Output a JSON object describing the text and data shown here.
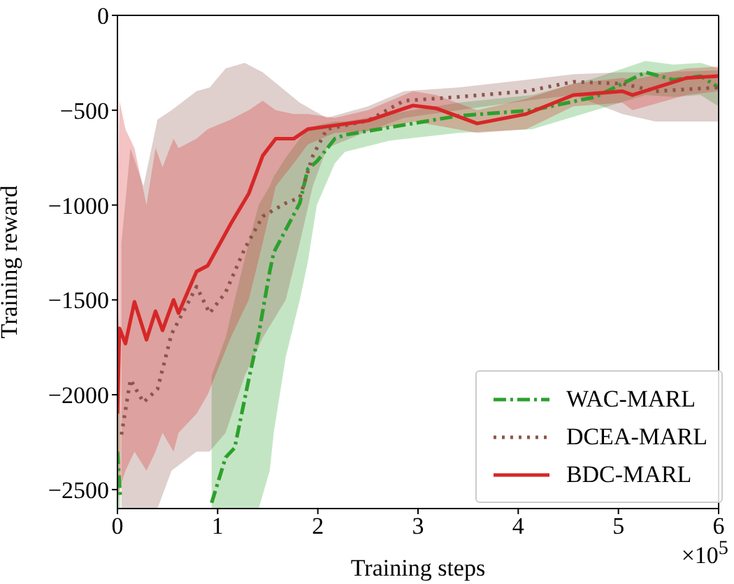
{
  "chart_data": {
    "type": "line",
    "xlabel": "Training steps",
    "ylabel": "Training reward",
    "annotations": [
      "×10$^{5}$"
    ],
    "xlim": [
      0,
      6
    ],
    "xticks": [
      0,
      1,
      2,
      3,
      4,
      5,
      6
    ],
    "ylim": [
      -2600,
      0
    ],
    "yticks": [
      0,
      -500,
      -1000,
      -1500,
      -2000,
      -2500
    ],
    "legend": "bottom right",
    "marker": "none",
    "series": [
      {
        "name": "WAC-MARL",
        "color": "#2ca02c",
        "line_style": "dashed",
        "x": [
          0,
          0.03,
          0.5,
          0.94,
          1.08,
          1.17,
          1.31,
          1.41,
          1.52,
          1.56,
          1.68,
          1.82,
          1.9,
          1.99,
          2.17,
          2.27,
          2.72,
          3.4,
          4.14,
          4.77,
          5.27,
          5.55,
          5.82,
          6.0
        ],
        "values": [
          -2300,
          -2550,
          null,
          -2570,
          -2330,
          -2280,
          -1920,
          -1680,
          -1350,
          -1250,
          -1130,
          -990,
          -810,
          -770,
          -650,
          -630,
          -590,
          -530,
          -500,
          -430,
          -300,
          -340,
          -320,
          -380
        ],
        "lower": [
          -2600,
          -2600,
          null,
          -2600,
          -2600,
          -2600,
          -2600,
          -2600,
          -2400,
          -2200,
          -1800,
          -1500,
          -1300,
          -1000,
          -780,
          -720,
          -660,
          -620,
          -600,
          -500,
          -420,
          -430,
          -420,
          -480
        ],
        "upper": [
          -1500,
          -1800,
          null,
          -1900,
          -1700,
          -1500,
          -1200,
          -1000,
          -900,
          -850,
          -750,
          -650,
          -600,
          -580,
          -560,
          -560,
          -520,
          -460,
          -420,
          -330,
          -240,
          -260,
          -250,
          -280
        ]
      },
      {
        "name": "DCEA-MARL",
        "color": "#8c564b",
        "line_style": "dotted",
        "x": [
          0.04,
          0.13,
          0.26,
          0.4,
          0.54,
          0.79,
          0.92,
          1.08,
          1.27,
          1.45,
          1.68,
          1.82,
          1.95,
          2.09,
          2.5,
          2.86,
          3.4,
          4.08,
          4.55,
          5.04,
          5.37,
          6.0
        ],
        "values": [
          -2210,
          -1920,
          -2040,
          -1970,
          -1680,
          -1430,
          -1570,
          -1460,
          -1230,
          -1060,
          -990,
          -960,
          -740,
          -600,
          -555,
          -450,
          -430,
          -400,
          -350,
          -360,
          -400,
          -380
        ],
        "lower": [
          -2600,
          -2600,
          -2600,
          -2600,
          -2400,
          -2300,
          -2300,
          -2200,
          -1900,
          -1700,
          -1500,
          -1200,
          -900,
          -700,
          -610,
          -540,
          -500,
          -450,
          -420,
          -520,
          -560,
          -560
        ],
        "upper": [
          -1200,
          -700,
          -900,
          -550,
          -500,
          -400,
          -380,
          -280,
          -250,
          -300,
          -400,
          -460,
          -500,
          -540,
          -480,
          -400,
          -380,
          -340,
          -310,
          -300,
          -300,
          -290
        ]
      },
      {
        "name": "BDC-MARL",
        "color": "#d62728",
        "line_style": "solid",
        "x": [
          0,
          0.02,
          0.08,
          0.17,
          0.29,
          0.38,
          0.45,
          0.56,
          0.61,
          0.79,
          0.9,
          1.13,
          1.31,
          1.45,
          1.58,
          1.76,
          1.9,
          2.17,
          2.5,
          2.95,
          3.18,
          3.59,
          4.08,
          4.55,
          5.04,
          5.14,
          5.68,
          6.0
        ],
        "values": [
          -2100,
          -1650,
          -1730,
          -1510,
          -1710,
          -1560,
          -1660,
          -1500,
          -1570,
          -1350,
          -1320,
          -1100,
          -940,
          -740,
          -650,
          -650,
          -600,
          -580,
          -555,
          -475,
          -490,
          -570,
          -520,
          -420,
          -400,
          -420,
          -330,
          -320
        ],
        "lower": [
          -2600,
          -2500,
          -2400,
          -2300,
          -2400,
          -2300,
          -2200,
          -2300,
          -2200,
          -2100,
          -2000,
          -1700,
          -1500,
          -1200,
          -900,
          -780,
          -680,
          -620,
          -610,
          -560,
          -580,
          -620,
          -600,
          -480,
          -460,
          -500,
          -420,
          -400
        ],
        "upper": [
          -1000,
          -450,
          -600,
          -700,
          -1000,
          -700,
          -800,
          -650,
          -700,
          -650,
          -600,
          -550,
          -500,
          -450,
          -500,
          -520,
          -520,
          -540,
          -500,
          -400,
          -420,
          -500,
          -440,
          -360,
          -330,
          -340,
          -280,
          -270
        ]
      }
    ]
  }
}
